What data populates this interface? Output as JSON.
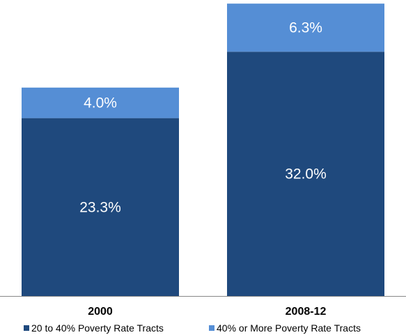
{
  "chart_data": {
    "type": "bar",
    "stacked": true,
    "categories": [
      "2000",
      "2008-12"
    ],
    "series": [
      {
        "name": "20 to 40% Poverty Rate Tracts",
        "values": [
          23.3,
          32.0
        ],
        "labels": [
          "23.3%",
          "32.0%"
        ],
        "color": "#1f497d"
      },
      {
        "name": "40% or More Poverty Rate Tracts",
        "values": [
          4.0,
          6.3
        ],
        "labels": [
          "4.0%",
          "6.3%"
        ],
        "color": "#558ed5"
      }
    ],
    "title": "",
    "xlabel": "",
    "ylabel": "",
    "ylim": [
      0,
      40
    ],
    "grid": false,
    "legend": "bottom"
  }
}
